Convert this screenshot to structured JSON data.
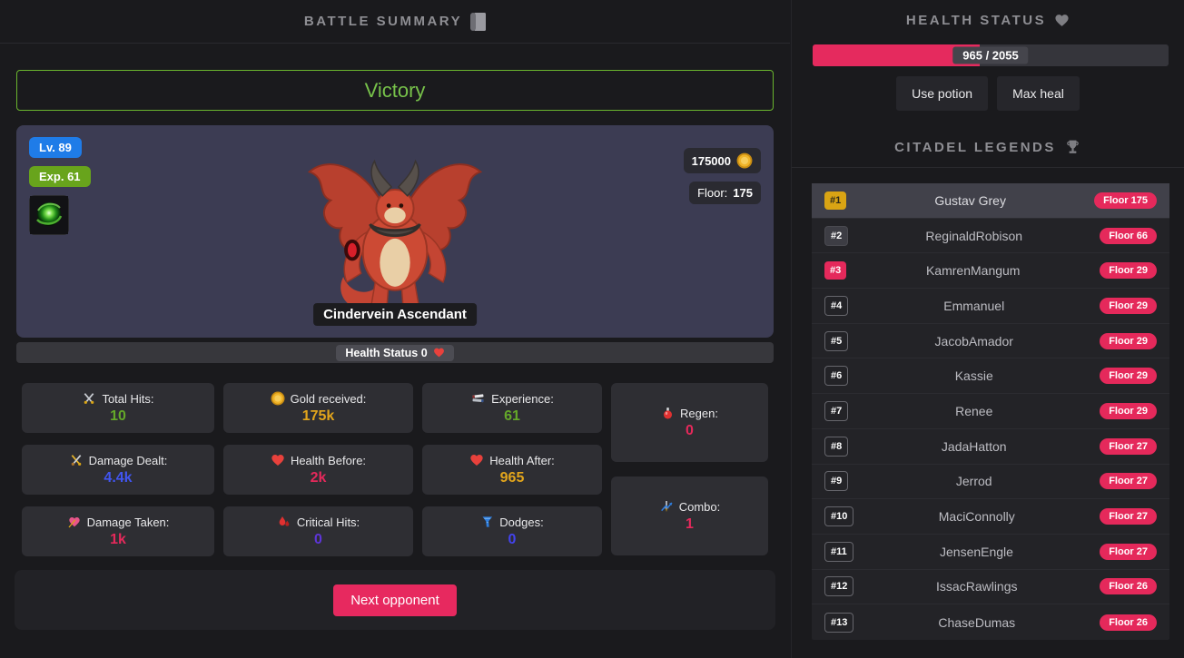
{
  "battle": {
    "title": "BATTLE SUMMARY",
    "result": "Victory",
    "enemy": {
      "level_label": "Lv. 89",
      "exp_label": "Exp. 61",
      "name": "Cindervein Ascendant",
      "gold": "175000",
      "floor_label": "Floor:",
      "floor_value": "175",
      "health_label": "Health Status 0"
    },
    "stats_columns": [
      [
        {
          "icon": "crossed-swords",
          "label": "Total Hits:",
          "value": "10",
          "color": "#64a829"
        },
        {
          "icon": "gold-swords",
          "label": "Damage Dealt:",
          "value": "4.4k",
          "color": "#4155f0"
        },
        {
          "icon": "pierced-heart",
          "label": "Damage Taken:",
          "value": "1k",
          "color": "#e5295b"
        }
      ],
      [
        {
          "icon": "coin",
          "label": "Gold received:",
          "value": "175k",
          "color": "#e2a51c"
        },
        {
          "icon": "heart",
          "label": "Health Before:",
          "value": "2k",
          "color": "#e5295b"
        },
        {
          "icon": "blood-drops",
          "label": "Critical Hits:",
          "value": "0",
          "color": "#5e35d9"
        }
      ],
      [
        {
          "icon": "books",
          "label": "Experience:",
          "value": "61",
          "color": "#64a829"
        },
        {
          "icon": "heart",
          "label": "Health After:",
          "value": "965",
          "color": "#e2a51c"
        },
        {
          "icon": "tornado",
          "label": "Dodges:",
          "value": "0",
          "color": "#4343ef"
        }
      ],
      [
        {
          "icon": "potion",
          "label": "Regen:",
          "value": "0",
          "color": "#e5295b"
        },
        {
          "icon": "sword-chart",
          "label": "Combo:",
          "value": "1",
          "color": "#e5295b"
        }
      ]
    ],
    "next_button": "Next opponent"
  },
  "health": {
    "title": "HEALTH STATUS",
    "current": 965,
    "max": 2055,
    "display": "965 / 2055",
    "use_potion": "Use potion",
    "max_heal": "Max heal",
    "bar_color": "#e52a5e"
  },
  "legends": {
    "title": "CITADEL LEGENDS",
    "rows": [
      {
        "rank": "#1",
        "name": "Gustav Grey",
        "floor": "Floor 175",
        "style": "gold",
        "highlight": true
      },
      {
        "rank": "#2",
        "name": "ReginaldRobison",
        "floor": "Floor 66",
        "style": "dark",
        "highlight": false
      },
      {
        "rank": "#3",
        "name": "KamrenMangum",
        "floor": "Floor 29",
        "style": "pink",
        "highlight": false
      },
      {
        "rank": "#4",
        "name": "Emmanuel",
        "floor": "Floor 29",
        "style": "plain",
        "highlight": false
      },
      {
        "rank": "#5",
        "name": "JacobAmador",
        "floor": "Floor 29",
        "style": "plain",
        "highlight": false
      },
      {
        "rank": "#6",
        "name": "Kassie",
        "floor": "Floor 29",
        "style": "plain",
        "highlight": false
      },
      {
        "rank": "#7",
        "name": "Renee",
        "floor": "Floor 29",
        "style": "plain",
        "highlight": false
      },
      {
        "rank": "#8",
        "name": "JadaHatton",
        "floor": "Floor 27",
        "style": "plain",
        "highlight": false
      },
      {
        "rank": "#9",
        "name": "Jerrod",
        "floor": "Floor 27",
        "style": "plain",
        "highlight": false
      },
      {
        "rank": "#10",
        "name": "MaciConnolly",
        "floor": "Floor 27",
        "style": "plain",
        "highlight": false
      },
      {
        "rank": "#11",
        "name": "JensenEngle",
        "floor": "Floor 27",
        "style": "plain",
        "highlight": false
      },
      {
        "rank": "#12",
        "name": "IssacRawlings",
        "floor": "Floor 26",
        "style": "plain",
        "highlight": false
      },
      {
        "rank": "#13",
        "name": "ChaseDumas",
        "floor": "Floor 26",
        "style": "plain",
        "highlight": false
      }
    ]
  },
  "colors": {
    "accent_pink": "#e5295b",
    "victory_green": "#77c24a",
    "gold": "#e2a51c",
    "rank_gold": "#d9a414"
  }
}
